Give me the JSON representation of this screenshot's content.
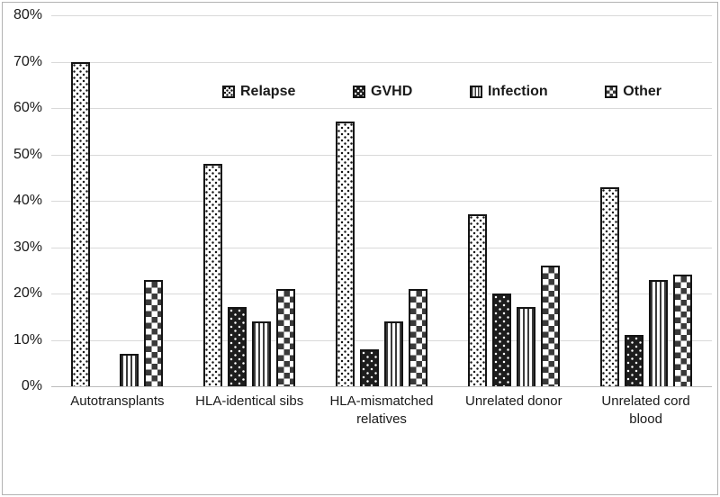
{
  "figure": {
    "background": "#ffffff",
    "border_color": "#b3b3b3"
  },
  "colors": {
    "ink": "#1a1a1a",
    "pattern_dark": "#3a3a3a",
    "gridline": "#d9d9d9",
    "baseline": "#bdbdbd"
  },
  "chart_data": {
    "type": "bar",
    "title": "",
    "xlabel": "",
    "ylabel": "",
    "unit": "%",
    "ylim": [
      0,
      80
    ],
    "ytick_step": 10,
    "ytick_labels": [
      "0%",
      "10%",
      "20%",
      "30%",
      "40%",
      "50%",
      "60%",
      "70%",
      "80%"
    ],
    "grid": "horizontal",
    "legend_position": "top-inside",
    "categories": [
      "Autotransplants",
      "HLA-identical sibs",
      "HLA-mismatched relatives",
      "Unrelated donor",
      "Unrelated cord blood"
    ],
    "series": [
      {
        "name": "Relapse",
        "pattern": "black-dots-on-white",
        "values": [
          70,
          48,
          57,
          37,
          43
        ]
      },
      {
        "name": "GVHD",
        "pattern": "white-dots-on-black",
        "values": [
          0,
          17,
          8,
          20,
          11
        ]
      },
      {
        "name": "Infection",
        "pattern": "vertical-stripes",
        "values": [
          7,
          14,
          14,
          17,
          23
        ]
      },
      {
        "name": "Other",
        "pattern": "checkerboard",
        "values": [
          23,
          21,
          21,
          26,
          24
        ]
      }
    ]
  }
}
